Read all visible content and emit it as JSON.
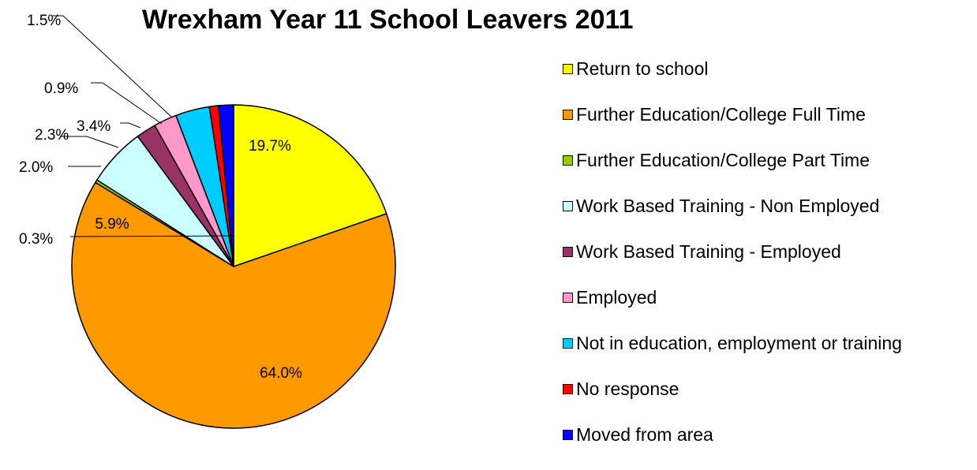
{
  "chart_data": {
    "type": "pie",
    "title": "Wrexham Year 11 School Leavers 2011",
    "legend_position": "right",
    "slices": [
      {
        "label": "Return to school",
        "value": 19.7,
        "value_label": "19.7%",
        "color": "#FFFF00"
      },
      {
        "label": "Further Education/College Full Time",
        "value": 64.0,
        "value_label": "64.0%",
        "color": "#FF9900"
      },
      {
        "label": "Further Education/College Part Time",
        "value": 0.3,
        "value_label": "0.3%",
        "color": "#99CC00"
      },
      {
        "label": "Work Based Training - Non Employed",
        "value": 5.9,
        "value_label": "5.9%",
        "color": "#CCFFFF"
      },
      {
        "label": "Work Based Training - Employed",
        "value": 2.0,
        "value_label": "2.0%",
        "color": "#993366"
      },
      {
        "label": "Employed",
        "value": 2.3,
        "value_label": "2.3%",
        "color": "#FF99CC"
      },
      {
        "label": "Not in education, employment or training",
        "value": 3.4,
        "value_label": "3.4%",
        "color": "#00CCFF"
      },
      {
        "label": "No response",
        "value": 0.9,
        "value_label": "0.9%",
        "color": "#FF0000"
      },
      {
        "label": "Moved from area",
        "value": 1.5,
        "value_label": "1.5%",
        "color": "#0000FF"
      }
    ]
  }
}
